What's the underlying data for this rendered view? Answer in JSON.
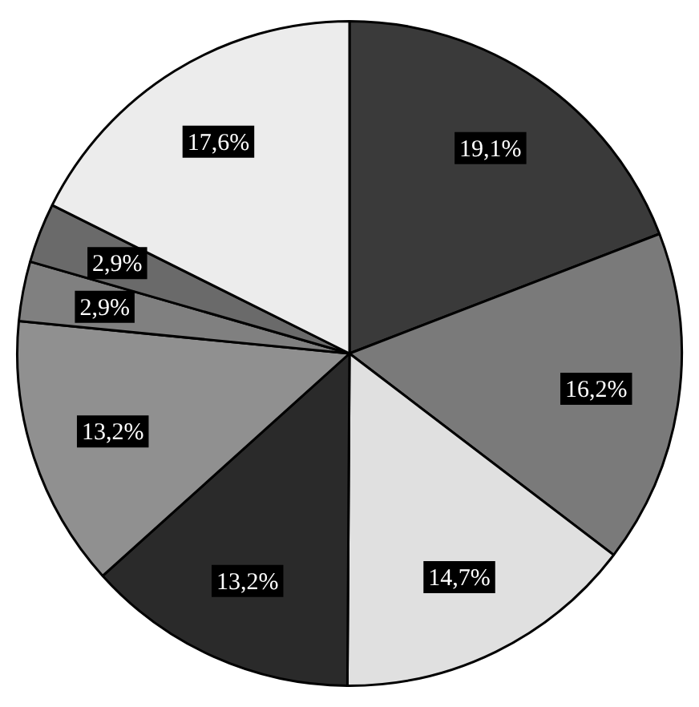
{
  "chart_data": {
    "type": "pie",
    "categories": [
      null,
      null,
      null,
      null,
      null,
      null,
      null,
      null
    ],
    "values": [
      19.1,
      16.2,
      14.7,
      13.2,
      13.2,
      2.9,
      2.9,
      17.6
    ],
    "colors": [
      "#3a3a3a",
      "#7a7a7a",
      "#e0e0e0",
      "#2a2a2a",
      "#909090",
      "#808080",
      "#6a6a6a",
      "#ececec"
    ],
    "value_labels": [
      "19,1%",
      "16,2%",
      "14,7%",
      "13,2%",
      "13,2%",
      "2,9%",
      "2,9%",
      "17,6%"
    ],
    "legend": false
  }
}
